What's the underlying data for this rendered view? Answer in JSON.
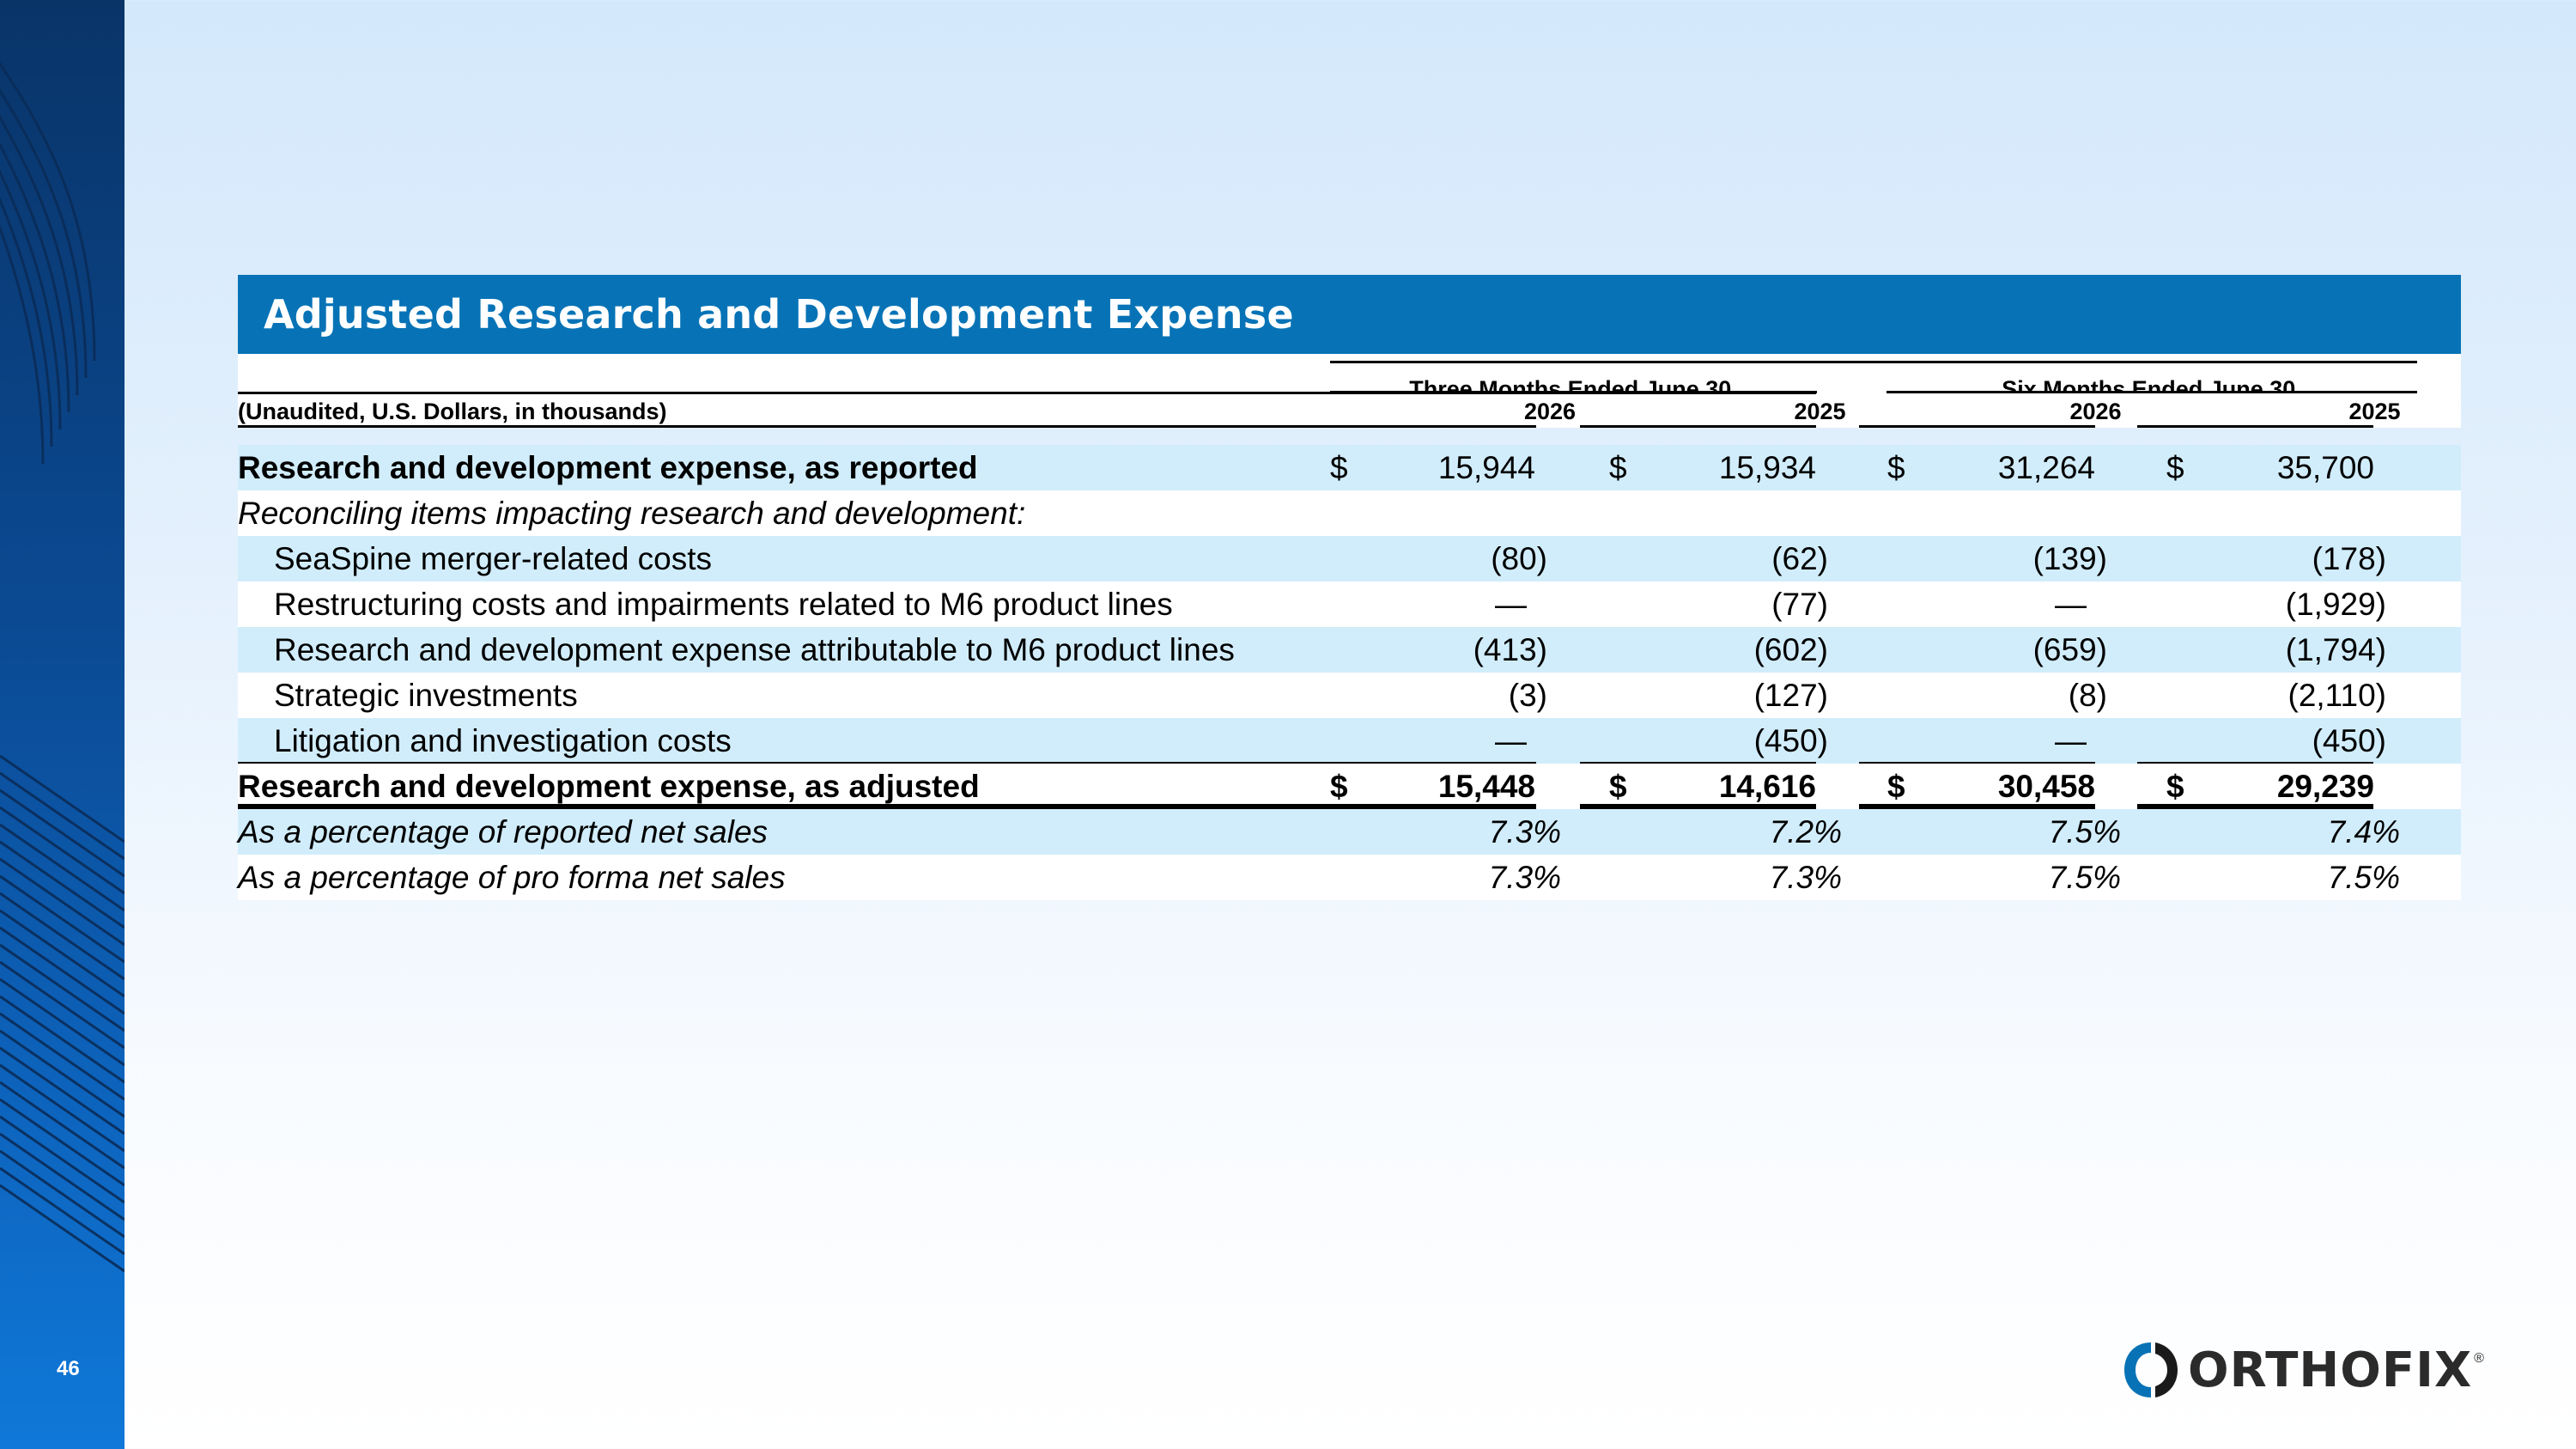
{
  "slide": {
    "title": "Adjusted Research and Development Expense",
    "page_number": "46",
    "brand_name": "ORTHOFIX",
    "brand_mark": "®",
    "colors": {
      "title_bar": "#0773b6",
      "row_shade": "#d1edfb",
      "side_strip": "#0b4b95",
      "text": "#000000"
    }
  },
  "table": {
    "units_label": "(Unaudited, U.S. Dollars, in thousands)",
    "period_groups": [
      "Three Months Ended June 30,",
      "Six Months Ended June 30,"
    ],
    "years": [
      "2026",
      "2025",
      "2026",
      "2025"
    ],
    "rows": [
      {
        "label": "Research and development expense, as reported",
        "style": "bold",
        "currency": "$",
        "values": [
          "15,944",
          "15,934",
          "31,264",
          "35,700"
        ],
        "shade": "blue"
      },
      {
        "label": "Reconciling items impacting research and development:",
        "style": "italic",
        "currency": "",
        "values": [
          "",
          "",
          "",
          ""
        ],
        "shade": "white"
      },
      {
        "label": "SeaSpine merger-related costs",
        "style": "indent",
        "currency": "",
        "values": [
          "(80)",
          "(62)",
          "(139)",
          "(178)"
        ],
        "shade": "blue"
      },
      {
        "label": "Restructuring costs and impairments related to M6 product lines",
        "style": "indent",
        "currency": "",
        "values": [
          "—",
          "(77)",
          "—",
          "(1,929)"
        ],
        "shade": "white"
      },
      {
        "label": "Research and development expense attributable to M6 product lines",
        "style": "indent",
        "currency": "",
        "values": [
          "(413)",
          "(602)",
          "(659)",
          "(1,794)"
        ],
        "shade": "blue"
      },
      {
        "label": "Strategic investments",
        "style": "indent",
        "currency": "",
        "values": [
          "(3)",
          "(127)",
          "(8)",
          "(2,110)"
        ],
        "shade": "white"
      },
      {
        "label": "Litigation and investigation costs",
        "style": "indent",
        "currency": "",
        "values": [
          "—",
          "(450)",
          "—",
          "(450)"
        ],
        "shade": "blue"
      },
      {
        "label": "Research and development expense, as adjusted",
        "style": "bold",
        "currency": "$",
        "values": [
          "15,448",
          "14,616",
          "30,458",
          "29,239"
        ],
        "shade": "white"
      },
      {
        "label": "As a percentage of reported net sales",
        "style": "italic",
        "currency": "",
        "values": [
          "7.3%",
          "7.2%",
          "7.5%",
          "7.4%"
        ],
        "shade": "blue"
      },
      {
        "label": "As a percentage of pro forma net sales",
        "style": "italic",
        "currency": "",
        "values": [
          "7.3%",
          "7.3%",
          "7.5%",
          "7.5%"
        ],
        "shade": "white"
      }
    ]
  }
}
